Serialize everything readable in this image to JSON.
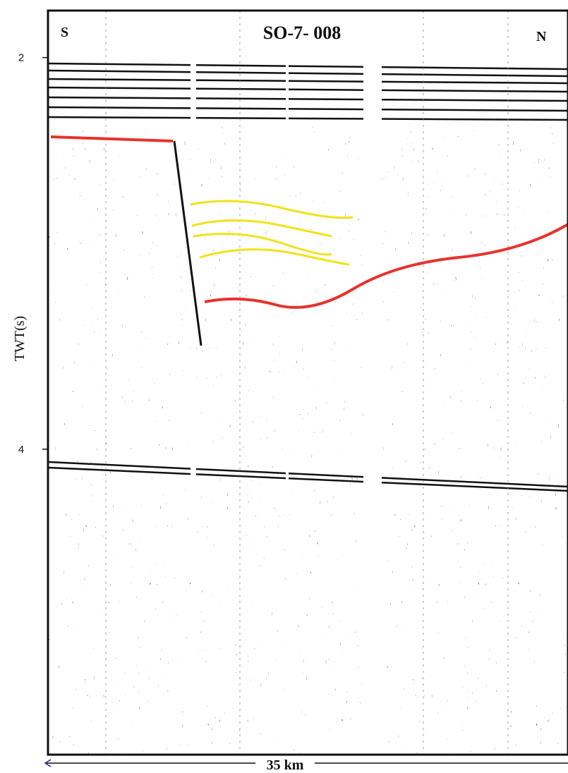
{
  "chart_data": {
    "type": "image",
    "title": "SO-7- 008",
    "left_label": "S",
    "right_label": "N",
    "y_label": "TWT(s)",
    "ylim": [
      1.76,
      5.56
    ],
    "yticks": [
      2,
      4
    ],
    "scale_bar": "35 km"
  }
}
